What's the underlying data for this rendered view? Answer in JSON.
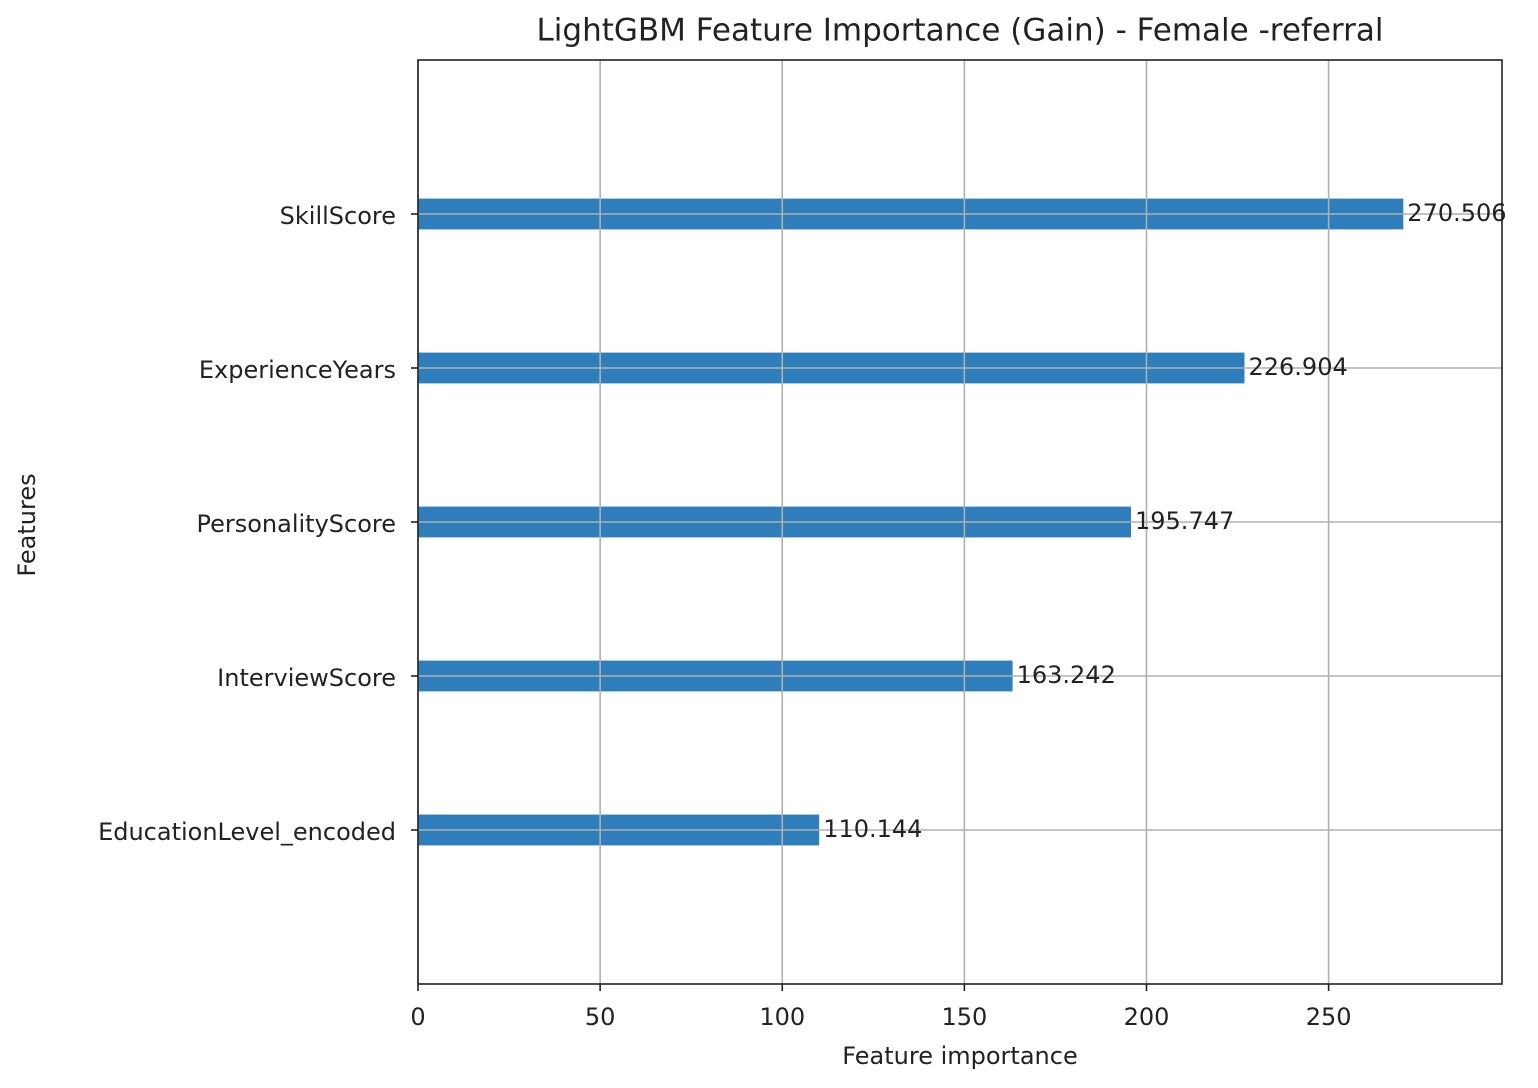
{
  "chart_data": {
    "type": "barh",
    "title": "LightGBM Feature Importance (Gain) - Female -referral",
    "x_label": "Feature importance",
    "y_label": "Features",
    "categories": [
      "EducationLevel_encoded",
      "InterviewScore",
      "PersonalityScore",
      "ExperienceYears",
      "SkillScore"
    ],
    "values": [
      110.144,
      163.242,
      195.747,
      226.904,
      270.506
    ],
    "color": "#2e7ebc",
    "xlim": [
      0,
      297.6
    ],
    "xticks": [
      0,
      50,
      100,
      150,
      200,
      250
    ],
    "grid": true
  }
}
